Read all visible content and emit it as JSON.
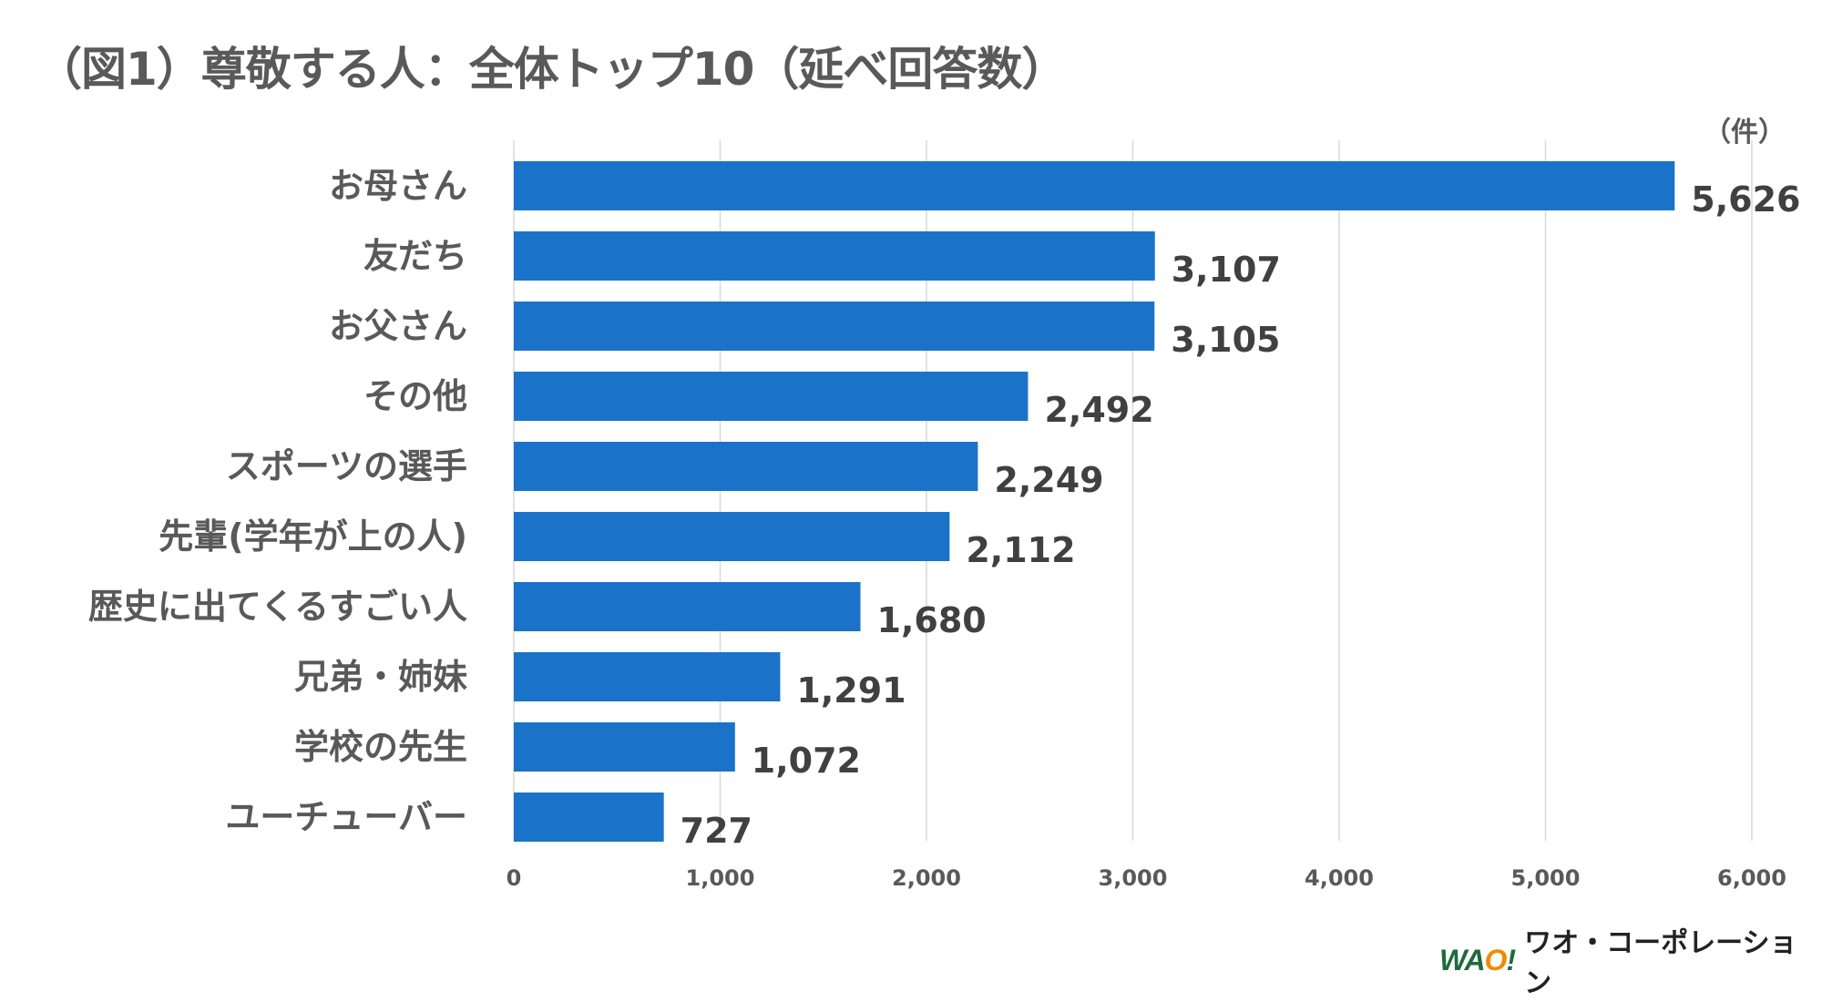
{
  "chart_data": {
    "type": "bar",
    "orientation": "horizontal",
    "title": "（図1）尊敬する人：全体トップ10（延べ回答数）",
    "unit_label": "（件）",
    "categories": [
      "お母さん",
      "友だち",
      "お父さん",
      "その他",
      "スポーツの選手",
      "先輩(学年が上の人)",
      "歴史に出てくるすごい人",
      "兄弟・姉妹",
      "学校の先生",
      "ユーチューバー"
    ],
    "values": [
      5626,
      3107,
      3105,
      2492,
      2249,
      2112,
      1680,
      1291,
      1072,
      727
    ],
    "value_labels": [
      "5,626",
      "3,107",
      "3,105",
      "2,492",
      "2,249",
      "2,112",
      "1,680",
      "1,291",
      "1,072",
      "727"
    ],
    "xlim": [
      0,
      6000
    ],
    "x_ticks": [
      0,
      1000,
      2000,
      3000,
      4000,
      5000,
      6000
    ],
    "x_tick_labels": [
      "0",
      "1,000",
      "2,000",
      "3,000",
      "4,000",
      "5,000",
      "6,000"
    ],
    "grid": "vertical",
    "bar_color": "#1a73c8"
  },
  "logo": {
    "mark": "WAO!",
    "name": "ワオ・コーポレーション"
  }
}
